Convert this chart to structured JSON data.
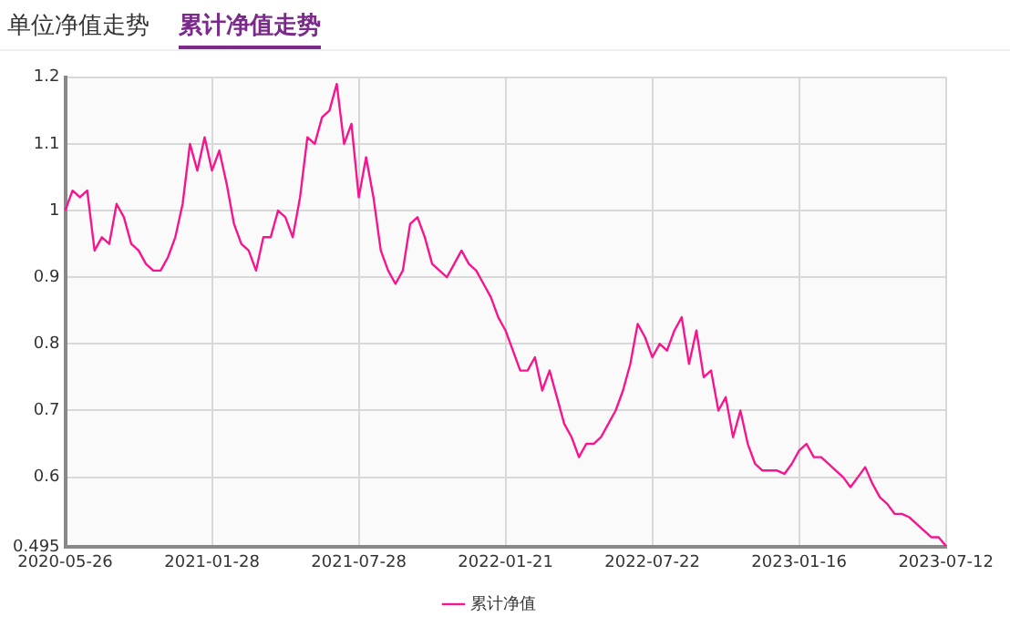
{
  "chart_data": {
    "type": "line",
    "title": "累计净值走势",
    "annotations": [
      "单位净值走势"
    ],
    "categories": [
      "2020-05-26",
      null,
      null,
      null,
      null,
      null,
      null,
      null,
      null,
      null,
      null,
      null,
      null,
      null,
      null,
      null,
      null,
      null,
      null,
      null,
      "2021-01-28",
      null,
      null,
      null,
      null,
      null,
      null,
      null,
      null,
      null,
      null,
      null,
      null,
      null,
      null,
      null,
      null,
      null,
      null,
      null,
      "2021-07-28",
      null,
      null,
      null,
      null,
      null,
      null,
      null,
      null,
      null,
      null,
      null,
      null,
      null,
      null,
      null,
      null,
      null,
      null,
      null,
      "2022-01-21",
      null,
      null,
      null,
      null,
      null,
      null,
      null,
      null,
      null,
      null,
      null,
      null,
      null,
      null,
      null,
      null,
      null,
      null,
      null,
      "2022-07-22",
      null,
      null,
      null,
      null,
      null,
      null,
      null,
      null,
      null,
      null,
      null,
      null,
      null,
      null,
      null,
      null,
      null,
      null,
      null,
      "2023-01-16",
      null,
      null,
      null,
      null,
      null,
      null,
      null,
      null,
      null,
      null,
      null,
      null,
      null,
      null,
      null,
      null,
      null,
      null,
      null,
      "2023-07-12"
    ],
    "series": [
      {
        "name": "累计净值",
        "color": "#f7158f",
        "values": [
          1.0,
          1.03,
          1.02,
          1.03,
          0.94,
          0.96,
          0.95,
          1.01,
          0.99,
          0.95,
          0.94,
          0.92,
          0.91,
          0.91,
          0.93,
          0.96,
          1.01,
          1.1,
          1.06,
          1.11,
          1.06,
          1.09,
          1.04,
          0.98,
          0.95,
          0.94,
          0.91,
          0.96,
          0.96,
          1.0,
          0.99,
          0.96,
          1.02,
          1.11,
          1.1,
          1.14,
          1.15,
          1.19,
          1.1,
          1.13,
          1.02,
          1.08,
          1.02,
          0.94,
          0.91,
          0.89,
          0.91,
          0.98,
          0.99,
          0.96,
          0.92,
          0.91,
          0.9,
          0.92,
          0.94,
          0.92,
          0.91,
          0.89,
          0.87,
          0.84,
          0.82,
          0.79,
          0.76,
          0.76,
          0.78,
          0.73,
          0.76,
          0.72,
          0.68,
          0.66,
          0.63,
          0.65,
          0.65,
          0.66,
          0.68,
          0.7,
          0.73,
          0.77,
          0.83,
          0.81,
          0.78,
          0.8,
          0.79,
          0.82,
          0.84,
          0.77,
          0.82,
          0.75,
          0.76,
          0.7,
          0.72,
          0.66,
          0.7,
          0.65,
          0.62,
          0.61,
          0.61,
          0.61,
          0.605,
          0.62,
          0.64,
          0.65,
          0.63,
          0.63,
          0.62,
          0.61,
          0.6,
          0.585,
          0.6,
          0.615,
          0.59,
          0.57,
          0.56,
          0.545,
          0.545,
          0.54,
          0.53,
          0.52,
          0.51,
          0.51,
          0.497
        ]
      }
    ],
    "ylim": [
      0.495,
      1.2
    ],
    "yticks": [
      0.495,
      0.6,
      0.7,
      0.8,
      0.9,
      1,
      1.1,
      1.2
    ],
    "grid": true,
    "legend": "bottom",
    "marker": "none",
    "line_style": "solid"
  }
}
